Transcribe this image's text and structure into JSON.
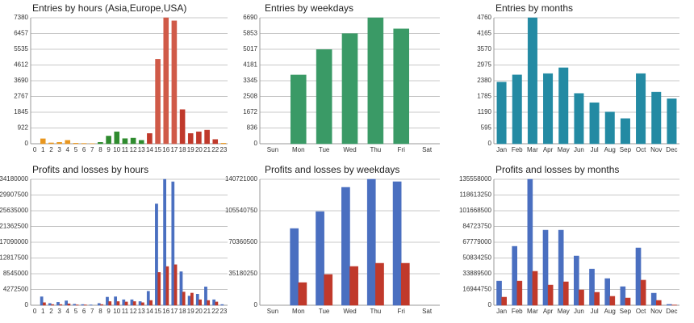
{
  "chart_data": [
    {
      "type": "bar",
      "title": "Entries by hours (Asia,Europe,USA)",
      "categories": [
        "0",
        "1",
        "2",
        "3",
        "4",
        "5",
        "6",
        "7",
        "8",
        "9",
        "10",
        "11",
        "12",
        "13",
        "14",
        "15",
        "16",
        "17",
        "18",
        "19",
        "20",
        "21",
        "22",
        "23"
      ],
      "values": [
        0,
        290,
        50,
        80,
        200,
        30,
        20,
        10,
        80,
        450,
        700,
        300,
        330,
        200,
        600,
        4950,
        7380,
        7200,
        2000,
        600,
        700,
        800,
        250,
        30
      ],
      "colors": [
        "#e8961e",
        "#e8961e",
        "#e8961e",
        "#e8961e",
        "#e8961e",
        "#e8961e",
        "#e8961e",
        "#e8961e",
        "#2e8b2e",
        "#2e8b2e",
        "#2e8b2e",
        "#2e8b2e",
        "#2e8b2e",
        "#2e8b2e",
        "#c0392b",
        "#d05a48",
        "#d05a48",
        "#d05a48",
        "#c0392b",
        "#c0392b",
        "#c0392b",
        "#c0392b",
        "#c0392b",
        "#e8961e"
      ],
      "ylim": [
        0,
        7380
      ],
      "yticks": [
        0,
        922,
        1845,
        2767,
        3690,
        4612,
        5535,
        6457,
        7380
      ],
      "grid": true
    },
    {
      "type": "bar",
      "title": "Entries by weekdays",
      "categories": [
        "Sun",
        "Mon",
        "Tue",
        "Wed",
        "Thu",
        "Fri",
        "Sat"
      ],
      "values": [
        0,
        3650,
        5000,
        5850,
        6690,
        6100,
        0
      ],
      "color": "#3a9a66",
      "ylim": [
        0,
        6690
      ],
      "yticks": [
        0,
        836,
        1672,
        2508,
        3345,
        4181,
        5017,
        5853,
        6690
      ],
      "grid": true
    },
    {
      "type": "bar",
      "title": "Entries by months",
      "categories": [
        "Jan",
        "Feb",
        "Mar",
        "Apr",
        "May",
        "Jun",
        "Jul",
        "Aug",
        "Sep",
        "Oct",
        "Nov",
        "Dec"
      ],
      "values": [
        2330,
        2600,
        4760,
        2650,
        2870,
        1900,
        1550,
        1200,
        950,
        2650,
        1950,
        1700
      ],
      "color": "#238aa3",
      "ylim": [
        0,
        4760
      ],
      "yticks": [
        0,
        595,
        1190,
        1785,
        2380,
        2975,
        3570,
        4165,
        4760
      ],
      "grid": true
    },
    {
      "type": "bar",
      "title": "Profits and losses by hours",
      "categories": [
        "0",
        "1",
        "2",
        "3",
        "4",
        "5",
        "6",
        "7",
        "8",
        "9",
        "10",
        "11",
        "12",
        "13",
        "14",
        "15",
        "16",
        "17",
        "18",
        "19",
        "20",
        "21",
        "22",
        "23"
      ],
      "series": [
        {
          "color": "#4a6fc0",
          "values": [
            0,
            2300000,
            500000,
            800000,
            1200000,
            300000,
            200000,
            100000,
            500000,
            2200000,
            2300000,
            1500000,
            1500000,
            1000000,
            3800000,
            27500000,
            34180000,
            33500000,
            9100000,
            2500000,
            3000000,
            5000000,
            1500000,
            200000
          ]
        },
        {
          "color": "#c0392b",
          "values": [
            0,
            700000,
            200000,
            200000,
            400000,
            100000,
            100000,
            0,
            200000,
            1000000,
            1000000,
            900000,
            1000000,
            700000,
            1300000,
            8900000,
            10500000,
            11000000,
            3600000,
            3300000,
            1500000,
            1300000,
            900000,
            0
          ]
        }
      ],
      "ylim": [
        0,
        34180000
      ],
      "yticks": [
        0,
        4272500,
        8545000,
        12817500,
        17090000,
        21362500,
        25635000,
        29907500,
        34180000
      ],
      "grid": true
    },
    {
      "type": "bar",
      "title": "Profits and losses by weekdays",
      "categories": [
        "Sun",
        "Mon",
        "Tue",
        "Wed",
        "Thu",
        "Fri",
        "Sat"
      ],
      "series": [
        {
          "color": "#4a6fc0",
          "values": [
            0,
            85700000,
            104600000,
            131700000,
            140721000,
            138000000,
            0
          ]
        },
        {
          "color": "#c0392b",
          "values": [
            0,
            25300000,
            34300000,
            43300000,
            46900000,
            46900000,
            0
          ]
        }
      ],
      "ylim": [
        0,
        140721000
      ],
      "yticks": [
        0,
        35180250,
        70360500,
        105540750,
        140721000
      ],
      "grid": true
    },
    {
      "type": "bar",
      "title": "Profits and losses by months",
      "categories": [
        "Jan",
        "Feb",
        "Mar",
        "Apr",
        "May",
        "Jun",
        "Jul",
        "Aug",
        "Sep",
        "Oct",
        "Nov",
        "Dec"
      ],
      "series": [
        {
          "color": "#4a6fc0",
          "values": [
            26000000,
            63400000,
            135558000,
            80800000,
            80800000,
            53000000,
            39000000,
            28700000,
            20000000,
            61700000,
            13000000,
            900000
          ]
        },
        {
          "color": "#c0392b",
          "values": [
            8700000,
            26000000,
            36500000,
            21700000,
            25200000,
            16500000,
            13900000,
            9600000,
            7800000,
            27000000,
            5200000,
            300000
          ]
        }
      ],
      "ylim": [
        0,
        135558000
      ],
      "yticks": [
        0,
        16944750,
        33889500,
        50834250,
        67779000,
        84723750,
        101668500,
        118613250,
        135558000
      ],
      "grid": true
    }
  ]
}
